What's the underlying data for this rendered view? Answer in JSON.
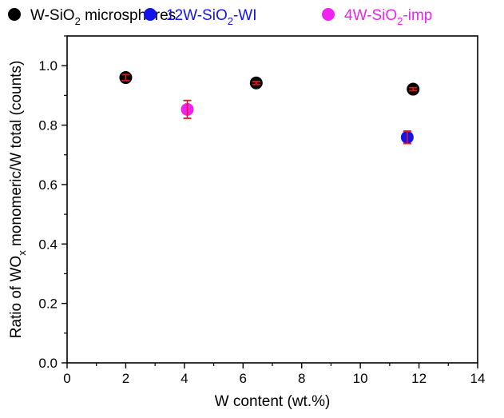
{
  "chart_data": {
    "type": "scatter",
    "xlabel": "W content (wt.%)",
    "ylabel": {
      "pre": "Ratio of WO",
      "sub": "x",
      "post": " monomeric/W total (counts)"
    },
    "xlim": [
      0,
      14
    ],
    "ylim": [
      0.0,
      1.1
    ],
    "xticks": [
      0,
      2,
      4,
      6,
      8,
      10,
      12,
      14
    ],
    "yticks": [
      0.0,
      0.2,
      0.4,
      0.6,
      0.8,
      1.0
    ],
    "xtick_labels": [
      "0",
      "2",
      "4",
      "6",
      "8",
      "10",
      "12",
      "14"
    ],
    "ytick_labels": [
      "0.0",
      "0.2",
      "0.4",
      "0.6",
      "0.8",
      "1.0"
    ],
    "grid": false,
    "legend_position": "top",
    "series": [
      {
        "label": {
          "pre": "W-SiO",
          "sub": "2",
          "post": " microspheres"
        },
        "color": "#000000",
        "error_color": "#e8141e",
        "points": [
          {
            "x": 2.0,
            "y": 0.96,
            "err": 0.01
          },
          {
            "x": 6.45,
            "y": 0.942,
            "err": 0.005
          },
          {
            "x": 11.8,
            "y": 0.921,
            "err": 0.005
          }
        ]
      },
      {
        "label": {
          "pre": "12W-SiO",
          "sub": "2",
          "post": "-WI"
        },
        "color": "#1414e6",
        "error_color": "#e8141e",
        "points": [
          {
            "x": 11.6,
            "y": 0.759,
            "err": 0.021
          }
        ]
      },
      {
        "label": {
          "pre": "4W-SiO",
          "sub": "2",
          "post": "-imp"
        },
        "color": "#f022f0",
        "error_color": "#e8141e",
        "points": [
          {
            "x": 4.1,
            "y": 0.853,
            "err": 0.03
          }
        ]
      }
    ]
  }
}
